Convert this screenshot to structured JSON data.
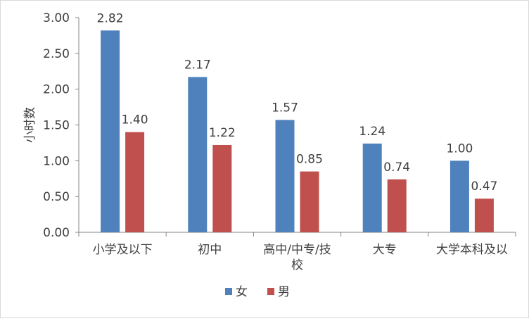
{
  "chart_data": {
    "type": "bar",
    "title": "",
    "xlabel": "",
    "ylabel": "小时数",
    "ylim": [
      0,
      3
    ],
    "yticks": [
      "0.00",
      "0.50",
      "1.00",
      "1.50",
      "2.00",
      "2.50",
      "3.00"
    ],
    "categories": [
      [
        "小学及以下"
      ],
      [
        "初中"
      ],
      [
        "高中/中专/技",
        "校"
      ],
      [
        "大专"
      ],
      [
        "大学本科及以"
      ]
    ],
    "series": [
      {
        "name": "女",
        "color": "#4f81bd",
        "values": [
          2.82,
          2.17,
          1.57,
          1.24,
          1.0
        ],
        "labels": [
          "2.82",
          "2.17",
          "1.57",
          "1.24",
          "1.00"
        ]
      },
      {
        "name": "男",
        "color": "#c0504d",
        "values": [
          1.4,
          1.22,
          0.85,
          0.74,
          0.47
        ],
        "labels": [
          "1.40",
          "1.22",
          "0.85",
          "0.74",
          "0.47"
        ]
      }
    ],
    "grid": false,
    "legend_position": "bottom"
  }
}
